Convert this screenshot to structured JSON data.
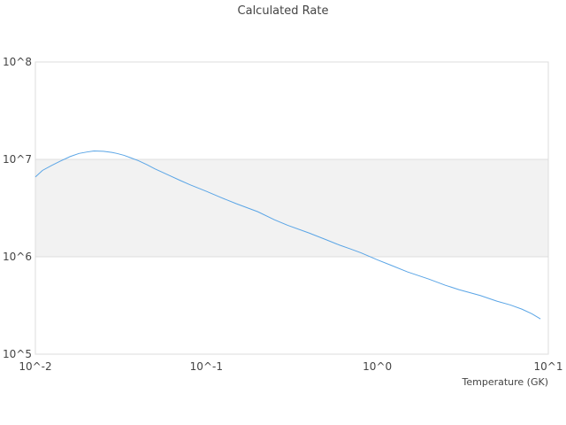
{
  "chart_data": {
    "type": "line",
    "title": "Calculated Rate",
    "xlabel": "Temperature (GK)",
    "ylabel": "",
    "x_scale": "log",
    "y_scale": "log",
    "xlim": [
      0.01,
      10
    ],
    "ylim": [
      100000,
      100000000
    ],
    "x_ticks": [
      {
        "value": 0.01,
        "label": "10^-2"
      },
      {
        "value": 0.1,
        "label": "10^-1"
      },
      {
        "value": 1,
        "label": "10^0"
      },
      {
        "value": 10,
        "label": "10^1"
      }
    ],
    "y_ticks": [
      {
        "value": 100000,
        "label": "10^5"
      },
      {
        "value": 1000000,
        "label": "10^6"
      },
      {
        "value": 10000000,
        "label": "10^7"
      },
      {
        "value": 100000000,
        "label": "10^8"
      }
    ],
    "grid": true,
    "legend": "none",
    "series": [
      {
        "color": "#5aa5e6",
        "x": [
          0.01,
          0.011,
          0.0125,
          0.014,
          0.016,
          0.018,
          0.02,
          0.022,
          0.025,
          0.028,
          0.03,
          0.033,
          0.036,
          0.04,
          0.045,
          0.05,
          0.06,
          0.07,
          0.08,
          0.1,
          0.12,
          0.15,
          0.2,
          0.25,
          0.3,
          0.4,
          0.5,
          0.6,
          0.7,
          0.8,
          1.0,
          1.2,
          1.5,
          2.0,
          2.5,
          3.0,
          4.0,
          5.0,
          6.0,
          7.0,
          8.0,
          9.0
        ],
        "y": [
          6600000,
          7700000,
          8700000,
          9600000,
          10700000,
          11500000,
          11900000,
          12200000,
          12100000,
          11800000,
          11500000,
          11000000,
          10400000,
          9700000,
          8800000,
          8000000,
          6900000,
          6100000,
          5500000,
          4700000,
          4100000,
          3500000,
          2900000,
          2400000,
          2100000,
          1750000,
          1500000,
          1320000,
          1200000,
          1100000,
          930000,
          820000,
          700000,
          590000,
          510000,
          460000,
          400000,
          350000,
          320000,
          290000,
          260000,
          230000
        ]
      }
    ]
  }
}
